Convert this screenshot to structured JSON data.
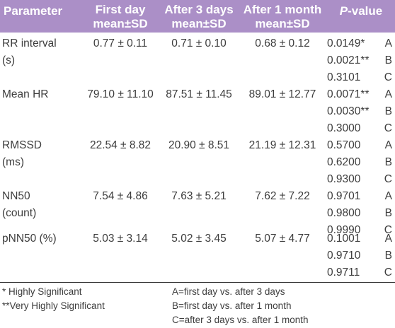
{
  "header": {
    "parameter": "Parameter",
    "first_day": [
      "First day",
      "mean±SD"
    ],
    "after_3_days": [
      "After 3 days",
      "mean±SD"
    ],
    "after_1_month": [
      "After 1 month",
      "mean±SD"
    ],
    "p_value": {
      "p": "P",
      "rest": "-value"
    }
  },
  "rows": [
    {
      "param": [
        "RR interval",
        "(s)"
      ],
      "first_day": "0.77 ± 0.11",
      "after_3_days": "0.71 ± 0.10",
      "after_1_month": "0.68 ± 0.12",
      "p": [
        {
          "value": "0.0149*",
          "comp": "A"
        },
        {
          "value": "0.0021**",
          "comp": "B"
        },
        {
          "value": "0.3101",
          "comp": "C"
        }
      ]
    },
    {
      "param": [
        "Mean HR"
      ],
      "first_day": "79.10 ± 11.10",
      "after_3_days": "87.51 ± 11.45",
      "after_1_month": "89.01 ± 12.77",
      "p": [
        {
          "value": "0.0071**",
          "comp": "A"
        },
        {
          "value": "0.0030**",
          "comp": "B"
        },
        {
          "value": "0.3000",
          "comp": "C"
        }
      ]
    },
    {
      "param": [
        "RMSSD",
        "(ms)"
      ],
      "first_day": "22.54 ± 8.82",
      "after_3_days": "20.90 ± 8.51",
      "after_1_month": "21.19 ± 12.31",
      "p": [
        {
          "value": "0.5700",
          "comp": "A"
        },
        {
          "value": "0.6200",
          "comp": "B"
        },
        {
          "value": "0.9300",
          "comp": "C"
        }
      ]
    },
    {
      "param": [
        "NN50",
        "(count)"
      ],
      "first_day": "7.54 ± 4.86",
      "after_3_days": "7.63 ± 5.21",
      "after_1_month": "7.62 ± 7.22",
      "p": [
        {
          "value": "0.9701",
          "comp": "A"
        },
        {
          "value": "0.9800",
          "comp": "B"
        },
        {
          "value": "0.9990",
          "comp": "C"
        }
      ]
    },
    {
      "param": [
        "pNN50 (%)"
      ],
      "first_day": "5.03 ± 3.14",
      "after_3_days": "5.02 ± 3.45",
      "after_1_month": "5.07 ± 4.77",
      "p": [
        {
          "value": "0.1001",
          "comp": "A"
        },
        {
          "value": "0.9710",
          "comp": "B"
        },
        {
          "value": "0.9711",
          "comp": "C"
        }
      ]
    }
  ],
  "footnotes": {
    "left": [
      "* Highly Significant",
      "**Very Highly Significant"
    ],
    "right": [
      "A=first day vs. after 3 days",
      "B=first day vs. after 1 month",
      "C=after 3 days vs. after 1 month"
    ]
  },
  "colors": {
    "header_bg": "#ab8fc7",
    "header_text": "#ffffff",
    "body_text": "#3d3d3d"
  }
}
